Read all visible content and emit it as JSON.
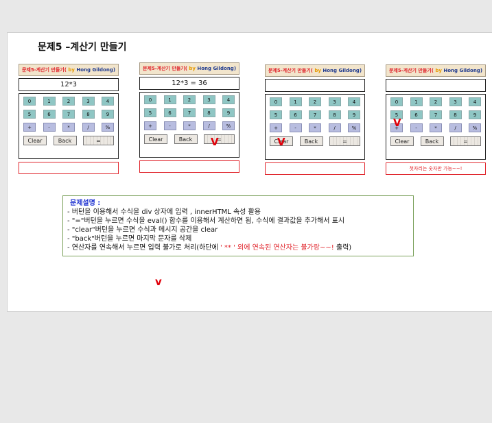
{
  "page": {
    "title": "문제5 –계산기 만들기"
  },
  "calc_title": {
    "main": "문제5-계산기 만들기(",
    "by": " by",
    "author": " Hong Gildong)"
  },
  "keys": {
    "row1": [
      "0",
      "1",
      "2",
      "3",
      "4"
    ],
    "row2": [
      "5",
      "6",
      "7",
      "8",
      "9"
    ],
    "row3": [
      "+",
      "-",
      "*",
      "/",
      "%"
    ],
    "clear": "Clear",
    "back": "Back",
    "equals": "="
  },
  "calculators": [
    {
      "display": "12*3",
      "message": ""
    },
    {
      "display": "12*3 = 36",
      "message": ""
    },
    {
      "display": "",
      "message": ""
    },
    {
      "display": "",
      "message": "첫자리는 숫자만 가능~~!"
    }
  ],
  "marks": {
    "v": "V",
    "v_lower": "v"
  },
  "description": {
    "title": "문제설명 :",
    "lines": [
      "- 버턴을 이용해서 수식을 div 상자에 입력 , innerHTML 속성 활용",
      "- \"=\"버턴을 누르면 수식을 eval() 함수를 이용해서 계산하면 됨, 수식에 결과값을 추가해서 표시",
      "- \"clear\"버턴을 누르면 수식과 메시지 공간을 clear",
      "-     \"back\"버턴을 누르면 마지막 문자를 삭제"
    ],
    "line5_prefix": "-     연산자를 연속해서 누르면 입력 불가로 처리(하단에 ",
    "line5_red": "' ** ' 외에 연속된 연산자는 불가랑~~!",
    "line5_suffix": " 출력)"
  },
  "colors": {
    "title_red": "#e0242b",
    "title_gold": "#e69a00",
    "title_blue": "#1f3a8f",
    "num_key": "#8fc6c4",
    "op_key": "#b8bde0",
    "mark": "#e0000a"
  }
}
